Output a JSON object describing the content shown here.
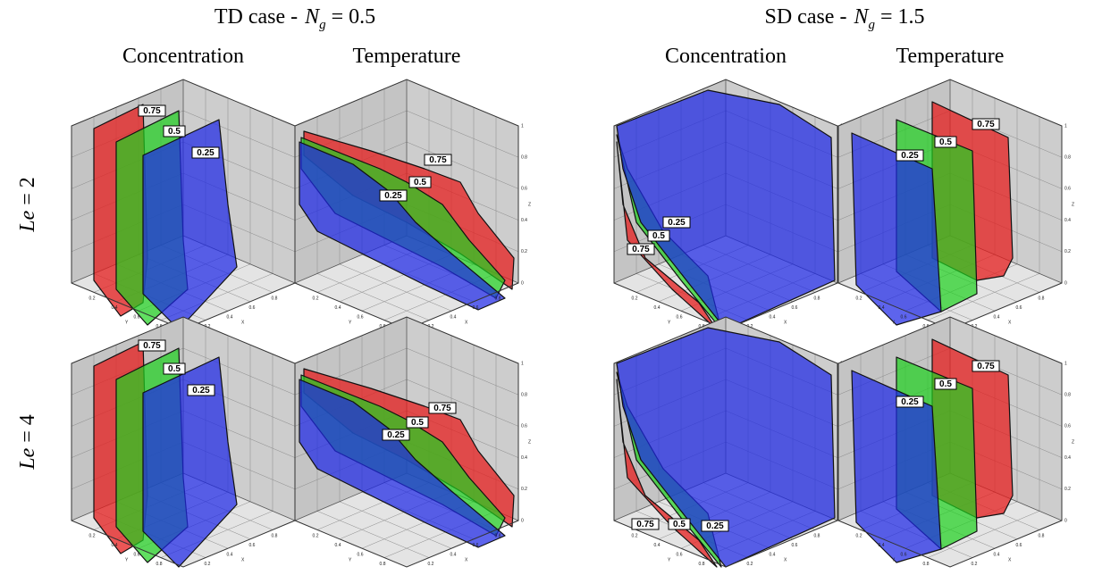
{
  "header": {
    "groups": [
      {
        "prefix": "TD case -",
        "symbol": "N",
        "subscript": "g",
        "value": "= 0.5",
        "columns": [
          "Concentration",
          "Temperature"
        ]
      },
      {
        "prefix": "SD case -",
        "symbol": "N",
        "subscript": "g",
        "value": "= 1.5",
        "columns": [
          "Concentration",
          "Temperature"
        ]
      }
    ]
  },
  "rows": [
    {
      "symbol": "Le",
      "value": "= 2",
      "panels": [
        {
          "labels": [
            "0.75",
            "0.5",
            "0.25"
          ]
        },
        {
          "labels": [
            "0.75",
            "0.5",
            "0.25"
          ]
        },
        {
          "labels": [
            "0.75",
            "0.5",
            "0.25"
          ]
        },
        {
          "labels": [
            "0.75",
            "0.5",
            "0.25"
          ]
        }
      ]
    },
    {
      "symbol": "Le",
      "value": "= 4",
      "panels": [
        {
          "labels": [
            "0.75",
            "0.5",
            "0.25"
          ]
        },
        {
          "labels": [
            "0.75",
            "0.5",
            "0.25"
          ]
        },
        {
          "labels": [
            "0.75",
            "0.5",
            "0.25"
          ]
        },
        {
          "labels": [
            "0.75",
            "0.5",
            "0.25"
          ]
        }
      ]
    }
  ],
  "axes": {
    "z_ticks": [
      "0",
      "0.2",
      "0.4",
      "0.6",
      "0.8",
      "1"
    ],
    "xy_ticks": [
      "0.2",
      "0.4",
      "0.6",
      "0.8"
    ],
    "names": [
      "X",
      "Y",
      "Z"
    ]
  }
}
